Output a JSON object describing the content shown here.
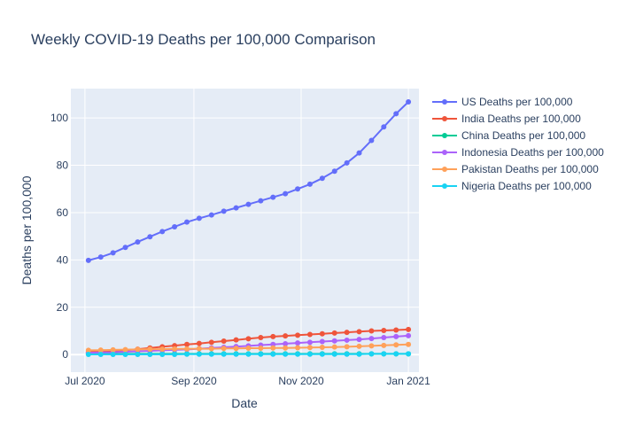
{
  "chart_data": {
    "type": "line",
    "title": "Weekly COVID-19 Deaths per 100,000 Comparison",
    "xlabel": "Date",
    "ylabel": "Deaths per 100,000",
    "x_tick_labels": [
      "Jul 2020",
      "Sep 2020",
      "Nov 2020",
      "Jan 2021"
    ],
    "x_tick_dates": [
      "2020-07-01",
      "2020-09-01",
      "2020-11-01",
      "2021-01-01"
    ],
    "xlim": [
      "2020-06-23",
      "2021-01-07"
    ],
    "y_ticks": [
      0,
      20,
      40,
      60,
      80,
      100
    ],
    "ylim": [
      -7.4,
      112.4
    ],
    "grid": true,
    "legend_position": "right",
    "x": [
      "2020-07-03",
      "2020-07-10",
      "2020-07-17",
      "2020-07-24",
      "2020-07-31",
      "2020-08-07",
      "2020-08-14",
      "2020-08-21",
      "2020-08-28",
      "2020-09-04",
      "2020-09-11",
      "2020-09-18",
      "2020-09-25",
      "2020-10-02",
      "2020-10-09",
      "2020-10-16",
      "2020-10-23",
      "2020-10-30",
      "2020-11-06",
      "2020-11-13",
      "2020-11-20",
      "2020-11-27",
      "2020-12-04",
      "2020-12-11",
      "2020-12-18",
      "2020-12-25",
      "2021-01-01"
    ],
    "series": [
      {
        "name": "US Deaths per 100,000",
        "color": "#636efa",
        "values": [
          39.8,
          41.2,
          43.0,
          45.3,
          47.6,
          49.8,
          52.0,
          54.0,
          56.0,
          57.6,
          59.0,
          60.6,
          62.0,
          63.5,
          65.0,
          66.5,
          68.0,
          70.0,
          72.0,
          74.5,
          77.5,
          81.0,
          85.2,
          90.5,
          96.2,
          101.8,
          106.8
        ]
      },
      {
        "name": "India Deaths per 100,000",
        "color": "#ef553b",
        "values": [
          1.1,
          1.3,
          1.6,
          1.9,
          2.3,
          2.8,
          3.3,
          3.8,
          4.3,
          4.7,
          5.2,
          5.7,
          6.2,
          6.7,
          7.2,
          7.6,
          7.9,
          8.2,
          8.5,
          8.8,
          9.1,
          9.4,
          9.7,
          10.0,
          10.2,
          10.4,
          10.6
        ]
      },
      {
        "name": "China Deaths per 100,000",
        "color": "#00cc96",
        "values": [
          0.3,
          0.3,
          0.3,
          0.3,
          0.3,
          0.3,
          0.3,
          0.3,
          0.3,
          0.3,
          0.3,
          0.3,
          0.3,
          0.3,
          0.3,
          0.3,
          0.3,
          0.3,
          0.3,
          0.3,
          0.3,
          0.3,
          0.3,
          0.3,
          0.3,
          0.3,
          0.3
        ]
      },
      {
        "name": "Indonesia Deaths per 100,000",
        "color": "#ab63fa",
        "values": [
          0.8,
          0.9,
          1.0,
          1.2,
          1.4,
          1.6,
          1.8,
          2.0,
          2.2,
          2.5,
          2.8,
          3.1,
          3.4,
          3.7,
          4.0,
          4.3,
          4.6,
          4.9,
          5.2,
          5.5,
          5.8,
          6.1,
          6.4,
          6.8,
          7.2,
          7.6,
          8.0
        ]
      },
      {
        "name": "Pakistan Deaths per 100,000",
        "color": "#ffa15a",
        "values": [
          1.8,
          1.9,
          2.0,
          2.1,
          2.2,
          2.3,
          2.3,
          2.4,
          2.4,
          2.5,
          2.5,
          2.6,
          2.6,
          2.7,
          2.7,
          2.8,
          2.8,
          2.9,
          3.0,
          3.1,
          3.2,
          3.3,
          3.5,
          3.7,
          3.9,
          4.1,
          4.3
        ]
      },
      {
        "name": "Nigeria Deaths per 100,000",
        "color": "#19d3f3",
        "values": [
          0.1,
          0.1,
          0.1,
          0.1,
          0.1,
          0.1,
          0.1,
          0.1,
          0.2,
          0.2,
          0.2,
          0.2,
          0.2,
          0.2,
          0.2,
          0.2,
          0.2,
          0.2,
          0.2,
          0.2,
          0.2,
          0.2,
          0.2,
          0.3,
          0.3,
          0.3,
          0.3
        ]
      }
    ]
  }
}
